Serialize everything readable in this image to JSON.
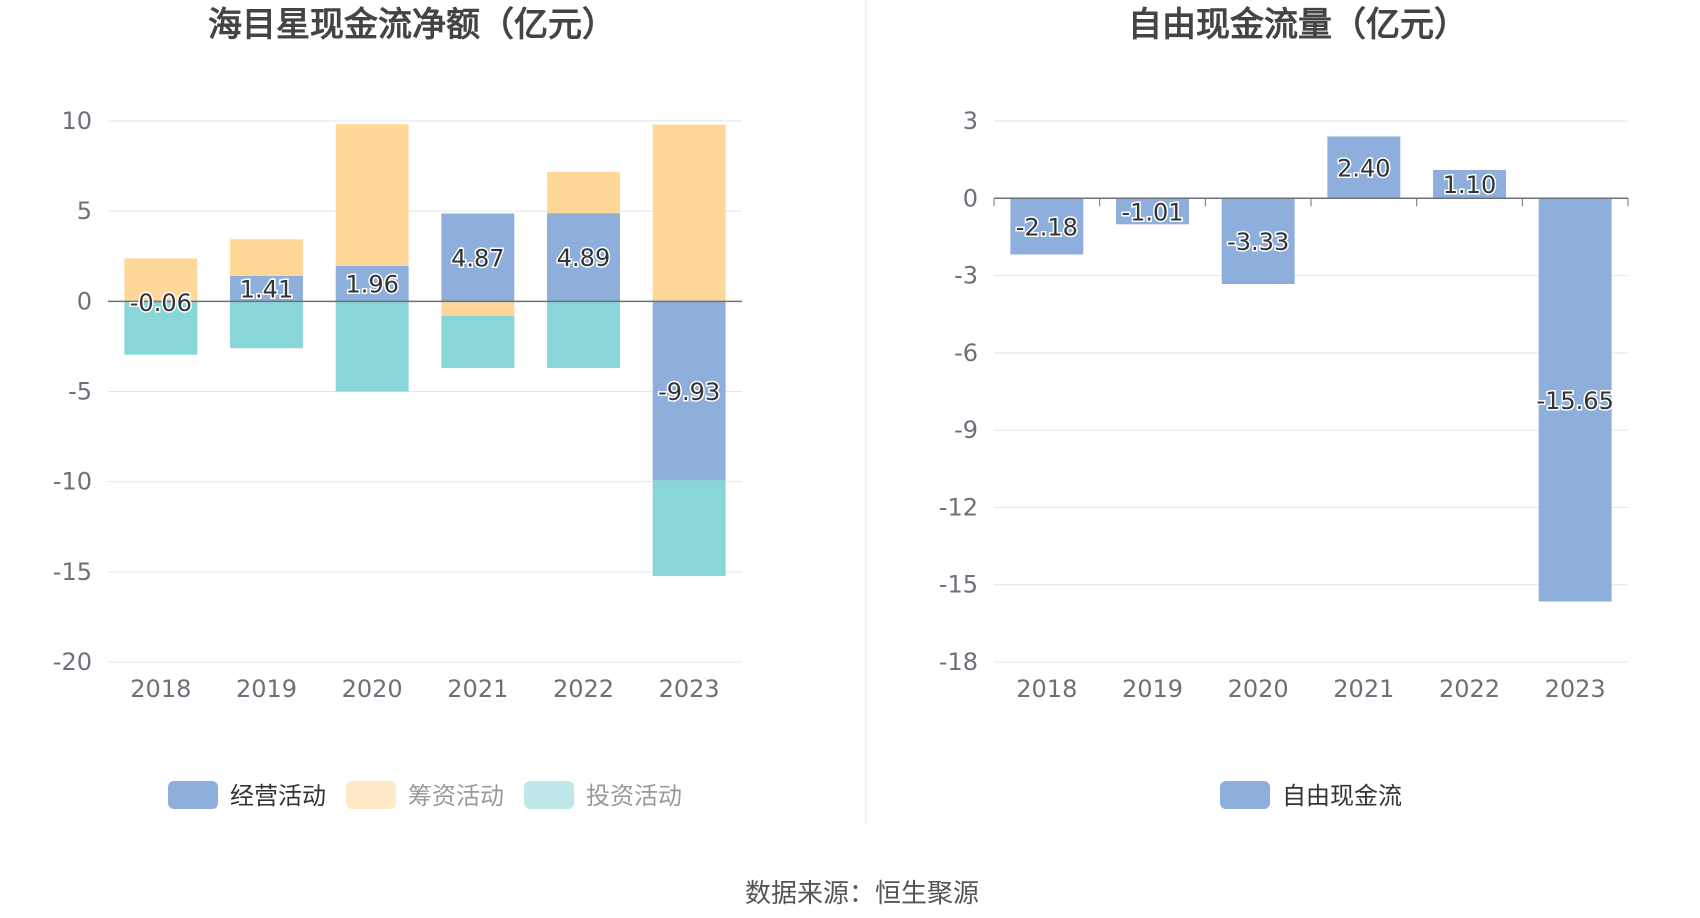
{
  "source": "数据来源：恒生聚源",
  "colors": {
    "operating": "#8eaedc",
    "financing": "#ffd899",
    "investing": "#88d6d8",
    "free_cash_flow": "#8eaedc",
    "grid": "#e0e4ef",
    "axis": "#6e7079"
  },
  "chart_data": [
    {
      "type": "bar",
      "stacked": true,
      "title": "海目星现金流净额（亿元）",
      "categories": [
        "2018",
        "2019",
        "2020",
        "2021",
        "2022",
        "2023"
      ],
      "ylim": [
        -20,
        10
      ],
      "yticks": [
        "10",
        "5",
        "0",
        "-5",
        "-10",
        "-15",
        "-20"
      ],
      "series": [
        {
          "name": "经营活动",
          "values": [
            -0.06,
            1.41,
            1.96,
            4.87,
            4.89,
            -9.93
          ],
          "labels": [
            "-0.06",
            "1.41",
            "1.96",
            "4.87",
            "4.89",
            "-9.93"
          ]
        },
        {
          "name": "筹资活动",
          "values": [
            2.38,
            2.03,
            7.86,
            -0.8,
            2.29,
            9.8
          ]
        },
        {
          "name": "投资活动",
          "values": [
            -2.9,
            -2.6,
            -5.0,
            -2.9,
            -3.7,
            -5.3
          ]
        }
      ],
      "legend_position": "bottom",
      "grid": true
    },
    {
      "type": "bar",
      "title": "自由现金流量（亿元）",
      "categories": [
        "2018",
        "2019",
        "2020",
        "2021",
        "2022",
        "2023"
      ],
      "ylim": [
        -18,
        3
      ],
      "yticks": [
        "3",
        "0",
        "-3",
        "-6",
        "-9",
        "-12",
        "-15",
        "-18"
      ],
      "series": [
        {
          "name": "自由现金流",
          "values": [
            -2.18,
            -1.01,
            -3.33,
            2.4,
            1.1,
            -15.65
          ],
          "labels": [
            "-2.18",
            "-1.01",
            "-3.33",
            "2.40",
            "1.10",
            "-15.65"
          ]
        }
      ],
      "legend_position": "bottom",
      "grid": true
    }
  ]
}
